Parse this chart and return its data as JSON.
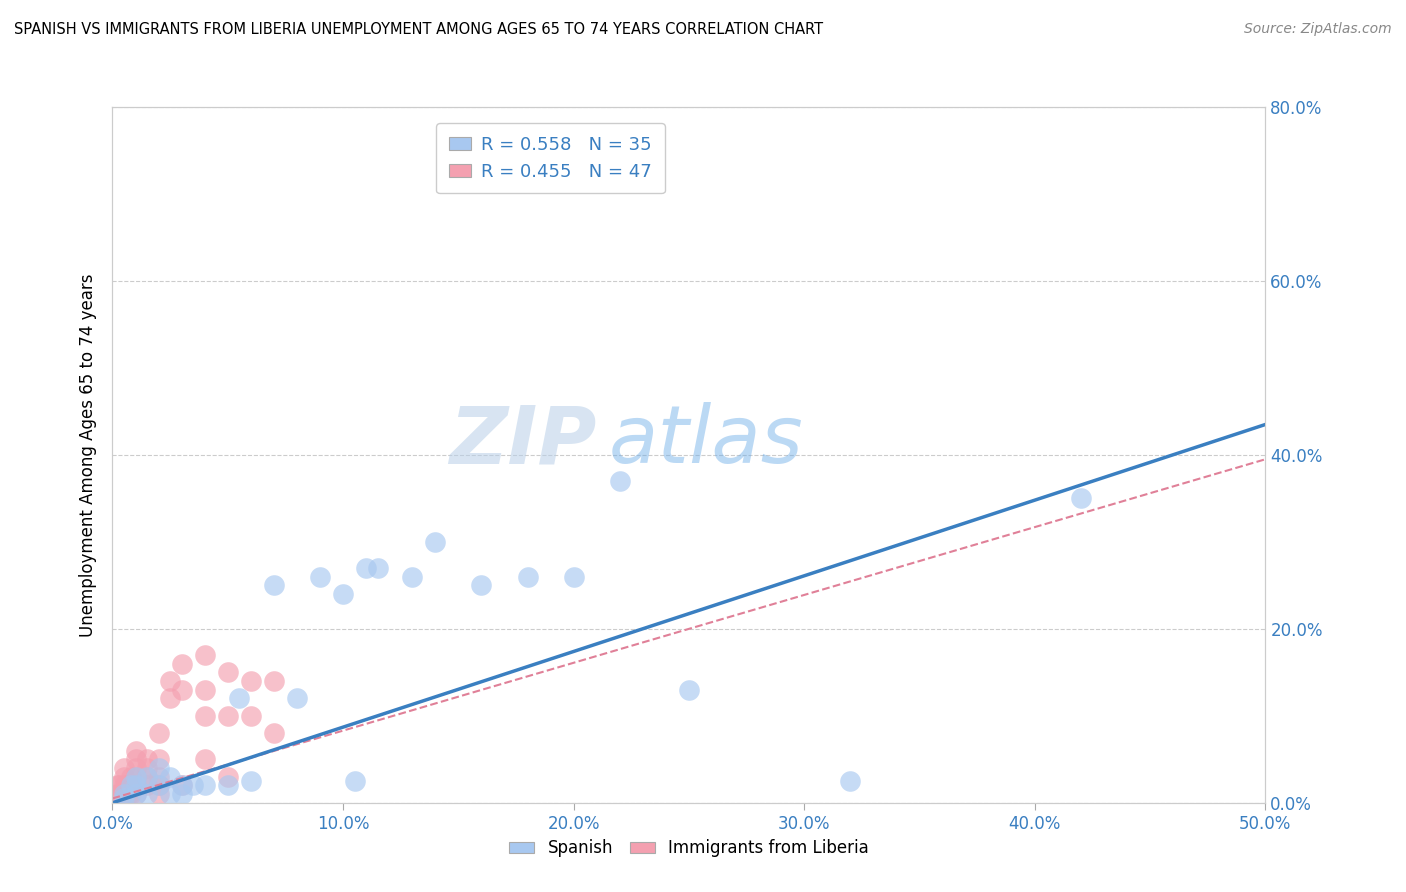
{
  "title": "SPANISH VS IMMIGRANTS FROM LIBERIA UNEMPLOYMENT AMONG AGES 65 TO 74 YEARS CORRELATION CHART",
  "source": "Source: ZipAtlas.com",
  "xlim": [
    0,
    0.5
  ],
  "ylim": [
    0,
    0.8
  ],
  "ylabel": "Unemployment Among Ages 65 to 74 years",
  "spanish_color": "#a8c8f0",
  "liberia_color": "#f4a0b0",
  "spanish_line_color": "#3a7fc1",
  "liberia_line_color": "#e08098",
  "legend_r_spanish": "R = 0.558",
  "legend_n_spanish": "N = 35",
  "legend_r_liberia": "R = 0.455",
  "legend_n_liberia": "N = 47",
  "watermark_zip": "ZIP",
  "watermark_atlas": "atlas",
  "spanish_x": [
    0.005,
    0.005,
    0.008,
    0.01,
    0.01,
    0.01,
    0.015,
    0.015,
    0.02,
    0.02,
    0.025,
    0.025,
    0.03,
    0.03,
    0.035,
    0.04,
    0.05,
    0.055,
    0.06,
    0.07,
    0.08,
    0.09,
    0.1,
    0.105,
    0.11,
    0.115,
    0.13,
    0.14,
    0.16,
    0.18,
    0.2,
    0.22,
    0.25,
    0.32,
    0.42
  ],
  "spanish_y": [
    0.005,
    0.01,
    0.02,
    0.01,
    0.02,
    0.03,
    0.01,
    0.03,
    0.02,
    0.04,
    0.01,
    0.03,
    0.01,
    0.02,
    0.02,
    0.02,
    0.02,
    0.12,
    0.025,
    0.25,
    0.12,
    0.26,
    0.24,
    0.025,
    0.27,
    0.27,
    0.26,
    0.3,
    0.25,
    0.26,
    0.26,
    0.37,
    0.13,
    0.025,
    0.35
  ],
  "liberia_x": [
    0.002,
    0.002,
    0.003,
    0.003,
    0.004,
    0.005,
    0.005,
    0.005,
    0.005,
    0.006,
    0.006,
    0.007,
    0.007,
    0.008,
    0.008,
    0.008,
    0.01,
    0.01,
    0.01,
    0.01,
    0.01,
    0.01,
    0.015,
    0.015,
    0.015,
    0.015,
    0.02,
    0.02,
    0.02,
    0.02,
    0.02,
    0.025,
    0.025,
    0.03,
    0.03,
    0.03,
    0.04,
    0.04,
    0.04,
    0.04,
    0.05,
    0.05,
    0.05,
    0.06,
    0.06,
    0.07,
    0.07
  ],
  "liberia_y": [
    0.01,
    0.02,
    0.01,
    0.02,
    0.01,
    0.01,
    0.02,
    0.03,
    0.04,
    0.01,
    0.02,
    0.01,
    0.02,
    0.01,
    0.02,
    0.03,
    0.01,
    0.02,
    0.03,
    0.04,
    0.05,
    0.06,
    0.02,
    0.03,
    0.04,
    0.05,
    0.01,
    0.02,
    0.03,
    0.05,
    0.08,
    0.12,
    0.14,
    0.02,
    0.13,
    0.16,
    0.05,
    0.1,
    0.13,
    0.17,
    0.03,
    0.1,
    0.15,
    0.1,
    0.14,
    0.08,
    0.14
  ],
  "blue_line_x0": 0.0,
  "blue_line_y0": 0.0,
  "blue_line_x1": 0.5,
  "blue_line_y1": 0.435,
  "pink_line_x0": 0.0,
  "pink_line_y0": 0.005,
  "pink_line_x1": 0.5,
  "pink_line_y1": 0.395
}
